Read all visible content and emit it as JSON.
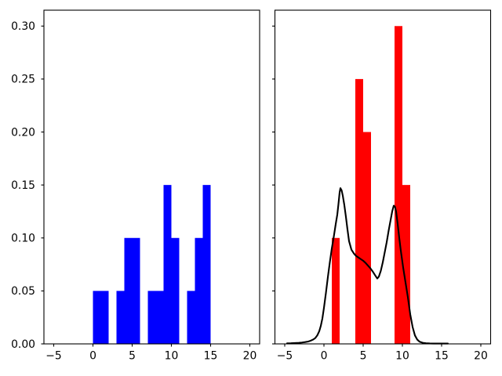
{
  "figure": {
    "background": "#ffffff",
    "title": "",
    "axis_color": "#000000",
    "tick_color": "#000000",
    "label_color": "#000000"
  },
  "chart_data": [
    {
      "type": "bar",
      "panel": "left",
      "title": "",
      "xlabel": "",
      "ylabel": "",
      "bar_color": "#0000ff",
      "xlim": [
        -6.25,
        21.25
      ],
      "ylim": [
        0,
        0.315
      ],
      "grid": false,
      "legend": null,
      "xticks": [
        -5,
        0,
        5,
        10,
        15,
        20
      ],
      "xtick_labels": [
        "−5",
        "0",
        "5",
        "10",
        "15",
        "20"
      ],
      "yticks": [
        0.0,
        0.05,
        0.1,
        0.15,
        0.2,
        0.25,
        0.3
      ],
      "ytick_labels": [
        "0.00",
        "0.05",
        "0.10",
        "0.15",
        "0.20",
        "0.25",
        "0.30"
      ],
      "bins": [
        {
          "x0": 0,
          "x1": 1,
          "v": 0.05
        },
        {
          "x0": 1,
          "x1": 2,
          "v": 0.05
        },
        {
          "x0": 3,
          "x1": 4,
          "v": 0.05
        },
        {
          "x0": 4,
          "x1": 5,
          "v": 0.1
        },
        {
          "x0": 5,
          "x1": 6,
          "v": 0.1
        },
        {
          "x0": 7,
          "x1": 8,
          "v": 0.05
        },
        {
          "x0": 8,
          "x1": 9,
          "v": 0.05
        },
        {
          "x0": 9,
          "x1": 10,
          "v": 0.15
        },
        {
          "x0": 10,
          "x1": 11,
          "v": 0.1
        },
        {
          "x0": 12,
          "x1": 13,
          "v": 0.05
        },
        {
          "x0": 13,
          "x1": 14,
          "v": 0.1
        },
        {
          "x0": 14,
          "x1": 15,
          "v": 0.15
        }
      ]
    },
    {
      "type": "bar+line",
      "panel": "right",
      "title": "",
      "xlabel": "",
      "ylabel": "",
      "bar_color": "#ff0000",
      "line_color": "#000000",
      "xlim": [
        -6.25,
        21.25
      ],
      "ylim": [
        0,
        0.315
      ],
      "grid": false,
      "legend": null,
      "xticks": [
        -5,
        0,
        5,
        10,
        15,
        20
      ],
      "xtick_labels": [
        "−5",
        "0",
        "5",
        "10",
        "15",
        "20"
      ],
      "yticks": [
        0.0,
        0.05,
        0.1,
        0.15,
        0.2,
        0.25,
        0.3
      ],
      "ytick_labels": [],
      "bins": [
        {
          "x0": 1,
          "x1": 2,
          "v": 0.1
        },
        {
          "x0": 4,
          "x1": 5,
          "v": 0.25
        },
        {
          "x0": 5,
          "x1": 6,
          "v": 0.2
        },
        {
          "x0": 9,
          "x1": 10,
          "v": 0.3
        },
        {
          "x0": 10,
          "x1": 11,
          "v": 0.15
        }
      ],
      "curve": {
        "name": "kde-density-curve",
        "x": [
          -4.7,
          -4.2,
          -3.7,
          -3.2,
          -2.8,
          -2.4,
          -2.0,
          -1.7,
          -1.4,
          -1.1,
          -0.85,
          -0.6,
          -0.4,
          -0.2,
          0.0,
          0.25,
          0.5,
          0.75,
          1.0,
          1.25,
          1.5,
          1.7,
          1.85,
          2.0,
          2.1,
          2.25,
          2.4,
          2.6,
          2.8,
          3.0,
          3.2,
          3.5,
          3.8,
          4.1,
          4.4,
          4.7,
          5.0,
          5.3,
          5.6,
          5.9,
          6.2,
          6.5,
          6.8,
          7.0,
          7.25,
          7.5,
          7.75,
          8.0,
          8.25,
          8.5,
          8.7,
          8.9,
          9.05,
          9.2,
          9.4,
          9.6,
          9.8,
          10.1,
          10.4,
          10.7,
          11.0,
          11.3,
          11.6,
          11.9,
          12.2,
          12.6,
          13.0,
          13.5,
          14.0,
          14.5,
          15.0,
          15.5,
          15.8
        ],
        "y": [
          0.0005,
          0.0006,
          0.0008,
          0.001,
          0.0013,
          0.0017,
          0.0022,
          0.003,
          0.004,
          0.0055,
          0.008,
          0.012,
          0.017,
          0.024,
          0.034,
          0.048,
          0.063,
          0.077,
          0.09,
          0.101,
          0.113,
          0.122,
          0.132,
          0.143,
          0.147,
          0.145,
          0.14,
          0.131,
          0.12,
          0.108,
          0.097,
          0.089,
          0.0855,
          0.083,
          0.0815,
          0.08,
          0.0785,
          0.0765,
          0.074,
          0.0715,
          0.0685,
          0.065,
          0.0617,
          0.0635,
          0.069,
          0.077,
          0.0865,
          0.096,
          0.107,
          0.117,
          0.125,
          0.1305,
          0.1295,
          0.125,
          0.113,
          0.1,
          0.088,
          0.072,
          0.058,
          0.044,
          0.028,
          0.016,
          0.008,
          0.004,
          0.002,
          0.001,
          0.0006,
          0.0004,
          0.0003,
          0.0003,
          0.0003,
          0.0003,
          0.0003
        ]
      }
    }
  ]
}
